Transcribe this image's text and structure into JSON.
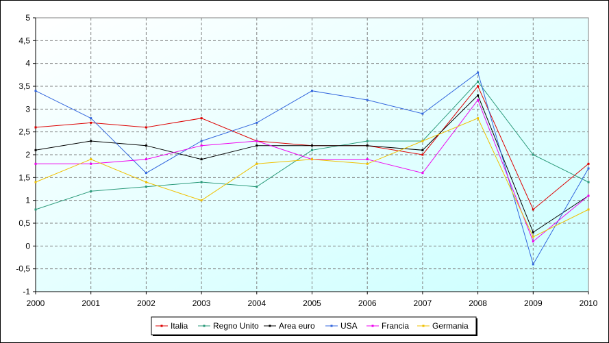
{
  "chart_data": {
    "type": "line",
    "title": "",
    "xlabel": "",
    "ylabel": "",
    "x": [
      "2000",
      "2001",
      "2002",
      "2003",
      "2004",
      "2005",
      "2006",
      "2007",
      "2008",
      "2009",
      "2010"
    ],
    "ylim": [
      -1,
      5
    ],
    "ytick_step": 0.5,
    "yticks": [
      "-1",
      "-0,5",
      "0",
      "0,5",
      "1",
      "1,5",
      "2",
      "2,5",
      "3",
      "3,5",
      "4",
      "4,5",
      "5"
    ],
    "grid": true,
    "legend_position": "bottom",
    "series": [
      {
        "name": "Italia",
        "color": "#dd0000",
        "values": [
          2.6,
          2.7,
          2.6,
          2.8,
          2.3,
          2.2,
          2.2,
          2.0,
          3.5,
          0.8,
          1.8
        ]
      },
      {
        "name": "Regno Unito",
        "color": "#2a9a7a",
        "values": [
          0.8,
          1.2,
          1.3,
          1.4,
          1.3,
          2.1,
          2.3,
          2.3,
          3.6,
          2.0,
          1.4
        ]
      },
      {
        "name": "Area euro",
        "color": "#000000",
        "values": [
          2.1,
          2.3,
          2.2,
          1.9,
          2.2,
          2.2,
          2.2,
          2.1,
          3.3,
          0.3,
          1.1
        ]
      },
      {
        "name": "USA",
        "color": "#3366dd",
        "values": [
          3.4,
          2.8,
          1.6,
          2.3,
          2.7,
          3.4,
          3.2,
          2.9,
          3.8,
          -0.4,
          1.7
        ]
      },
      {
        "name": "Francia",
        "color": "#ee00ee",
        "values": [
          1.8,
          1.8,
          1.9,
          2.2,
          2.3,
          1.9,
          1.9,
          1.6,
          3.2,
          0.1,
          1.1
        ]
      },
      {
        "name": "Germania",
        "color": "#f0c000",
        "values": [
          1.4,
          1.9,
          1.4,
          1.0,
          1.8,
          1.9,
          1.8,
          2.3,
          2.8,
          0.2,
          0.8
        ]
      }
    ],
    "plot_background": {
      "top": "#ffffff",
      "bottom": "#ccffff"
    },
    "grid_color": "#808080"
  }
}
